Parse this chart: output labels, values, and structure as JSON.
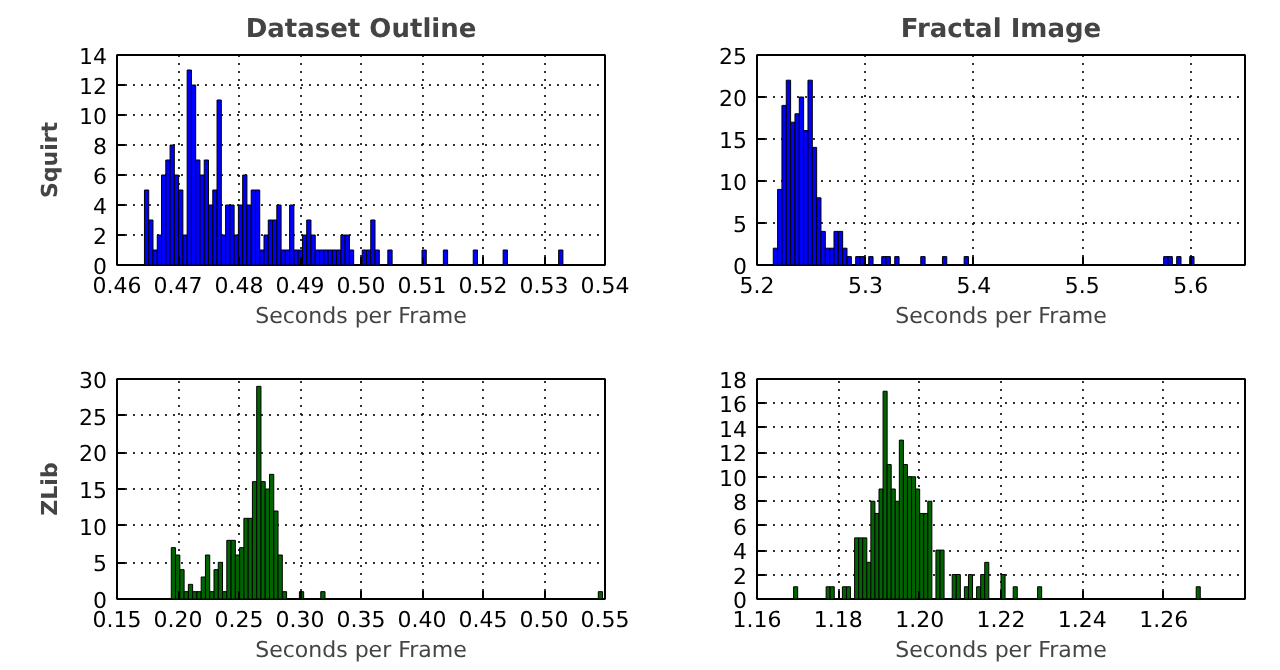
{
  "chart_data": [
    {
      "type": "histogram",
      "title": "Dataset Outline",
      "xlabel": "Seconds per Frame",
      "ylabel": "Squirt",
      "color": "#0000ff",
      "grid": true,
      "bins": [
        0.4645,
        0.4652,
        0.4659,
        0.4666,
        0.4673,
        0.468,
        0.4687,
        0.4694,
        0.4701,
        0.4708,
        0.4715,
        0.4722,
        0.4729,
        0.4736,
        0.4743,
        0.475,
        0.4757,
        0.4764,
        0.4771,
        0.4778,
        0.4785,
        0.4792,
        0.4799,
        0.4806,
        0.4813,
        0.482,
        0.4827,
        0.4834,
        0.4841,
        0.4848,
        0.4855,
        0.4862,
        0.4869,
        0.4876,
        0.4883,
        0.489,
        0.4897,
        0.4904,
        0.4911,
        0.4918,
        0.4925,
        0.4932,
        0.4939,
        0.4946,
        0.4953,
        0.496,
        0.4967,
        0.4974,
        0.4981,
        0.4988,
        0.5002,
        0.5009,
        0.5016,
        0.5023,
        0.503,
        0.5044,
        0.5051,
        0.51,
        0.5107,
        0.5135,
        0.5142,
        0.5184,
        0.5191,
        0.5233,
        0.524,
        0.5324,
        0.5331
      ],
      "values": [
        5,
        3,
        1,
        2,
        6,
        7,
        8,
        6,
        5,
        2,
        13,
        12,
        7,
        6,
        7,
        4,
        5,
        11,
        2,
        4,
        4,
        2,
        4,
        6,
        4,
        5,
        5,
        1,
        2,
        3,
        3,
        4,
        1,
        1,
        4,
        1,
        1,
        2,
        3,
        2,
        1,
        1,
        1,
        1,
        1,
        1,
        2,
        2,
        1,
        0,
        1,
        1,
        3,
        1,
        0,
        1,
        0,
        1,
        0,
        1,
        0,
        1,
        0,
        1,
        0,
        1
      ],
      "xlim": [
        0.46,
        0.54
      ],
      "xticks": [
        0.46,
        0.47,
        0.48,
        0.49,
        {
          "value": 0.5,
          "label": "0.50"
        },
        0.51,
        0.52,
        0.53,
        0.54
      ],
      "ylim": [
        0,
        14
      ],
      "yticks": [
        0,
        2,
        4,
        6,
        8,
        10,
        12,
        14
      ]
    },
    {
      "type": "histogram",
      "title": "Fractal Image",
      "xlabel": "Seconds per Frame",
      "color": "#0000ff",
      "grid": true,
      "bins": [
        5.215,
        5.219,
        5.223,
        5.227,
        5.231,
        5.235,
        5.239,
        5.243,
        5.247,
        5.251,
        5.255,
        5.259,
        5.263,
        5.267,
        5.271,
        5.275,
        5.279,
        5.283,
        5.287,
        5.291,
        5.295,
        5.299,
        5.303,
        5.307,
        5.315,
        5.319,
        5.323,
        5.327,
        5.331,
        5.351,
        5.355,
        5.371,
        5.375,
        5.391,
        5.395,
        5.575,
        5.579,
        5.583,
        5.587,
        5.591,
        5.599,
        5.603
      ],
      "values": [
        2,
        9,
        19,
        22,
        17,
        18,
        20,
        16,
        22,
        14,
        8,
        4,
        2,
        2,
        4,
        4,
        2,
        1,
        0,
        1,
        1,
        0,
        1,
        0,
        1,
        1,
        0,
        1,
        0,
        1,
        0,
        1,
        0,
        1,
        0,
        1,
        1,
        0,
        1,
        0,
        1
      ],
      "xlim": [
        5.2,
        5.65
      ],
      "xticks": [
        5.2,
        5.3,
        5.4,
        5.5,
        5.6
      ],
      "ylim": [
        0,
        25
      ],
      "yticks": [
        0,
        5,
        10,
        15,
        20,
        25
      ]
    },
    {
      "type": "histogram",
      "xlabel": "Seconds per Frame",
      "ylabel": "ZLib",
      "color": "#006400",
      "grid": true,
      "bins": [
        0.1945,
        0.198,
        0.2015,
        0.205,
        0.2085,
        0.212,
        0.2155,
        0.219,
        0.2225,
        0.226,
        0.2295,
        0.233,
        0.2365,
        0.24,
        0.2435,
        0.247,
        0.2505,
        0.254,
        0.2575,
        0.261,
        0.2645,
        0.268,
        0.2715,
        0.275,
        0.2785,
        0.282,
        0.2855,
        0.289,
        0.2995,
        0.303,
        0.317,
        0.3205,
        0.5445,
        0.548
      ],
      "values": [
        7,
        6,
        4,
        1,
        2,
        1,
        1,
        3,
        6,
        1,
        4,
        5,
        1,
        8,
        8,
        6,
        7,
        11,
        11,
        16,
        29,
        16,
        15,
        17,
        12,
        6,
        1,
        0,
        1,
        0,
        1,
        0,
        1
      ],
      "xlim": [
        0.15,
        0.55
      ],
      "xticks": [
        0.15,
        {
          "value": 0.2,
          "label": "0.20"
        },
        0.25,
        {
          "value": 0.3,
          "label": "0.30"
        },
        0.35,
        {
          "value": 0.4,
          "label": "0.40"
        },
        0.45,
        {
          "value": 0.5,
          "label": "0.50"
        },
        0.55
      ],
      "ylim": [
        0,
        30
      ],
      "yticks": [
        0,
        5,
        10,
        15,
        20,
        25,
        30
      ]
    },
    {
      "type": "histogram",
      "xlabel": "Seconds per Frame",
      "color": "#006400",
      "grid": true,
      "bins": [
        1.169,
        1.17,
        1.177,
        1.178,
        1.179,
        1.181,
        1.182,
        1.183,
        1.184,
        1.185,
        1.186,
        1.187,
        1.188,
        1.189,
        1.19,
        1.191,
        1.192,
        1.193,
        1.194,
        1.195,
        1.196,
        1.197,
        1.198,
        1.199,
        1.2,
        1.201,
        1.202,
        1.203,
        1.204,
        1.205,
        1.206,
        1.208,
        1.209,
        1.21,
        1.211,
        1.212,
        1.213,
        1.214,
        1.215,
        1.216,
        1.217,
        1.22,
        1.221,
        1.223,
        1.224,
        1.229,
        1.23,
        1.268,
        1.269
      ],
      "values": [
        1,
        0,
        1,
        1,
        0,
        1,
        1,
        0,
        5,
        5,
        5,
        3,
        8,
        7,
        9,
        17,
        11,
        9,
        8,
        13,
        11,
        10,
        10,
        9,
        7,
        7,
        8,
        0,
        4,
        4,
        0,
        2,
        2,
        0,
        1,
        2,
        0,
        1,
        2,
        3,
        0,
        2,
        0,
        1,
        0,
        1,
        0,
        1
      ],
      "xlim": [
        1.16,
        1.28
      ],
      "xticks": [
        1.16,
        1.18,
        {
          "value": 1.2,
          "label": "1.20"
        },
        1.22,
        1.24,
        1.26
      ],
      "ylim": [
        0,
        18
      ],
      "yticks": [
        0,
        2,
        4,
        6,
        8,
        10,
        12,
        14,
        16,
        18
      ]
    }
  ]
}
